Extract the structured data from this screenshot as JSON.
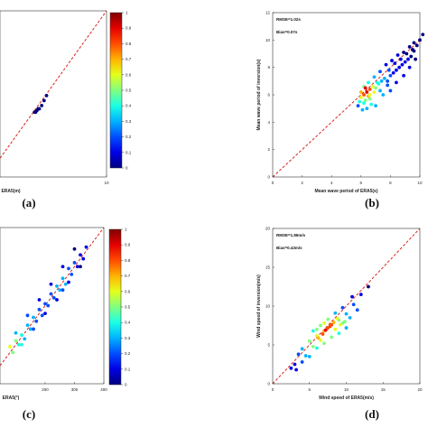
{
  "chart_data": [
    {
      "id": "a",
      "type": "scatter",
      "panel_label": "(a)",
      "xlabel": "ERA5(m)",
      "ylabel": "",
      "xlim": [
        0,
        10
      ],
      "ylim": [
        0,
        10
      ],
      "xticks": [
        "10"
      ],
      "yticks": [],
      "reference_line": "y=x",
      "points": [
        [
          4.0,
          3.9
        ],
        [
          4.2,
          4.0
        ],
        [
          4.4,
          4.1
        ],
        [
          4.6,
          4.3
        ],
        [
          4.8,
          4.6
        ],
        [
          5.0,
          4.9
        ],
        [
          4.3,
          4.1
        ],
        [
          4.1,
          3.9
        ]
      ],
      "colorbar": {
        "min": 0,
        "max": 1,
        "ticks": [
          "0",
          "0.1",
          "0.2",
          "0.3",
          "0.4",
          "0.5",
          "0.6",
          "0.7",
          "0.8",
          "0.9",
          "1"
        ]
      }
    },
    {
      "id": "b",
      "type": "scatter",
      "panel_label": "(b)",
      "xlabel": "Mean wave period of ERA5(s)",
      "ylabel": "Mean wave period of inversion(s)",
      "xlim": [
        0,
        10
      ],
      "ylim": [
        0,
        12
      ],
      "xticks": [
        "0",
        "2",
        "4",
        "6",
        "8",
        "10"
      ],
      "yticks": [
        "0",
        "2",
        "4",
        "6",
        "8",
        "10",
        "12"
      ],
      "annotations": [
        "RMSE=1.02s",
        "Bias=0.07s"
      ],
      "reference_line": "y=x",
      "points": [
        [
          5.8,
          5.2
        ],
        [
          6.0,
          5.8
        ],
        [
          6.2,
          6.0
        ],
        [
          6.3,
          5.6
        ],
        [
          6.4,
          6.2
        ],
        [
          6.5,
          5.9
        ],
        [
          6.6,
          6.4
        ],
        [
          6.8,
          6.6
        ],
        [
          7.0,
          6.5
        ],
        [
          7.2,
          6.8
        ],
        [
          7.4,
          7.0
        ],
        [
          7.6,
          7.2
        ],
        [
          7.8,
          7.0
        ],
        [
          8.0,
          7.4
        ],
        [
          8.2,
          7.6
        ],
        [
          8.4,
          7.8
        ],
        [
          8.6,
          8.0
        ],
        [
          8.8,
          8.2
        ],
        [
          9.0,
          8.4
        ],
        [
          9.2,
          8.6
        ],
        [
          9.4,
          8.8
        ],
        [
          9.6,
          9.2
        ],
        [
          9.8,
          9.6
        ],
        [
          10.0,
          10.0
        ],
        [
          10.2,
          10.4
        ],
        [
          6.1,
          4.9
        ],
        [
          6.4,
          5.0
        ],
        [
          6.7,
          5.3
        ],
        [
          7.0,
          5.2
        ],
        [
          7.5,
          6.0
        ],
        [
          8.0,
          6.3
        ],
        [
          8.4,
          6.9
        ],
        [
          8.9,
          7.4
        ],
        [
          9.3,
          8.0
        ],
        [
          9.7,
          8.6
        ],
        [
          6.2,
          6.6
        ],
        [
          6.5,
          6.9
        ],
        [
          6.9,
          7.3
        ],
        [
          7.3,
          7.7
        ],
        [
          7.7,
          8.2
        ],
        [
          8.1,
          8.5
        ],
        [
          8.5,
          8.9
        ],
        [
          8.9,
          9.1
        ],
        [
          9.3,
          9.5
        ],
        [
          9.6,
          9.8
        ],
        [
          6.0,
          6.2
        ],
        [
          6.3,
          6.5
        ],
        [
          6.6,
          6.0
        ],
        [
          6.9,
          6.2
        ],
        [
          7.1,
          6.9
        ],
        [
          7.9,
          7.8
        ],
        [
          8.3,
          8.3
        ],
        [
          8.7,
          8.6
        ],
        [
          9.1,
          9.0
        ],
        [
          9.5,
          9.3
        ],
        [
          5.9,
          5.5
        ],
        [
          6.2,
          5.4
        ],
        [
          6.6,
          5.7
        ],
        [
          7.3,
          6.3
        ],
        [
          7.8,
          6.7
        ]
      ],
      "point_density": [
        0.2,
        0.6,
        0.8,
        0.5,
        0.9,
        0.7,
        0.8,
        0.6,
        0.5,
        0.4,
        0.3,
        0.3,
        0.2,
        0.2,
        0.1,
        0.1,
        0.1,
        0.1,
        0.1,
        0.1,
        0.0,
        0.0,
        0.0,
        0.0,
        0.0,
        0.3,
        0.3,
        0.4,
        0.3,
        0.3,
        0.2,
        0.1,
        0.1,
        0.1,
        0.0,
        0.5,
        0.4,
        0.3,
        0.2,
        0.1,
        0.1,
        0.1,
        0.0,
        0.0,
        0.0,
        0.7,
        0.9,
        0.6,
        0.6,
        0.4,
        0.2,
        0.1,
        0.1,
        0.0,
        0.0,
        0.4,
        0.4,
        0.5,
        0.3,
        0.2
      ]
    },
    {
      "id": "c",
      "type": "scatter",
      "panel_label": "(c)",
      "xlabel": "ERA5(°)",
      "ylabel": "",
      "xlim": [
        0,
        400
      ],
      "ylim": [
        0,
        400
      ],
      "xticks": [
        "200",
        "300",
        "400"
      ],
      "yticks": [],
      "reference_line": "y=x",
      "points": [
        [
          80,
          95
        ],
        [
          100,
          110
        ],
        [
          120,
          125
        ],
        [
          140,
          150
        ],
        [
          160,
          170
        ],
        [
          180,
          190
        ],
        [
          200,
          205
        ],
        [
          220,
          230
        ],
        [
          240,
          250
        ],
        [
          260,
          270
        ],
        [
          280,
          295
        ],
        [
          300,
          310
        ],
        [
          320,
          330
        ],
        [
          340,
          350
        ],
        [
          90,
          80
        ],
        [
          110,
          100
        ],
        [
          130,
          115
        ],
        [
          150,
          140
        ],
        [
          170,
          160
        ],
        [
          190,
          175
        ],
        [
          210,
          200
        ],
        [
          230,
          220
        ],
        [
          250,
          240
        ],
        [
          270,
          255
        ],
        [
          290,
          280
        ],
        [
          310,
          300
        ],
        [
          330,
          320
        ],
        [
          100,
          130
        ],
        [
          140,
          175
        ],
        [
          180,
          215
        ],
        [
          220,
          255
        ],
        [
          260,
          300
        ],
        [
          300,
          345
        ],
        [
          200,
          180
        ],
        [
          240,
          215
        ],
        [
          280,
          260
        ],
        [
          320,
          300
        ],
        [
          120,
          100
        ],
        [
          160,
          140
        ],
        [
          260,
          240
        ]
      ],
      "point_density": [
        0.6,
        0.5,
        0.4,
        0.3,
        0.3,
        0.2,
        0.2,
        0.2,
        0.3,
        0.3,
        0.2,
        0.2,
        0.1,
        0.1,
        0.5,
        0.4,
        0.3,
        0.3,
        0.2,
        0.2,
        0.2,
        0.2,
        0.3,
        0.3,
        0.2,
        0.1,
        0.1,
        0.3,
        0.2,
        0.1,
        0.1,
        0.1,
        0.0,
        0.1,
        0.1,
        0.1,
        0.0,
        0.4,
        0.2,
        0.2
      ],
      "colorbar": {
        "min": 0,
        "max": 1,
        "ticks": [
          "0",
          "0.1",
          "0.2",
          "0.3",
          "0.4",
          "0.5",
          "0.6",
          "0.7",
          "0.8",
          "0.9",
          "1"
        ]
      }
    },
    {
      "id": "d",
      "type": "scatter",
      "panel_label": "(d)",
      "xlabel": "Wind speed of ERA5(m/s)",
      "ylabel": "Wind speed of inversion(m/s)",
      "xlim": [
        0,
        20
      ],
      "ylim": [
        0,
        20
      ],
      "xticks": [
        "0",
        "5",
        "10",
        "15",
        "20"
      ],
      "yticks": [
        "0",
        "5",
        "10",
        "15",
        "20"
      ],
      "annotations": [
        "RMSE=1.86m/s",
        "Bias=0.43m/s"
      ],
      "reference_line": "y=x",
      "points": [
        [
          3.0,
          2.5
        ],
        [
          3.5,
          3.8
        ],
        [
          4.0,
          4.5
        ],
        [
          4.5,
          3.6
        ],
        [
          5.0,
          5.5
        ],
        [
          5.5,
          4.8
        ],
        [
          6.0,
          6.2
        ],
        [
          6.5,
          5.6
        ],
        [
          7.0,
          6.8
        ],
        [
          7.5,
          7.2
        ],
        [
          8.0,
          7.6
        ],
        [
          8.5,
          7.0
        ],
        [
          9.0,
          8.2
        ],
        [
          9.5,
          7.8
        ],
        [
          10.0,
          9.0
        ],
        [
          10.5,
          8.5
        ],
        [
          11.0,
          10.2
        ],
        [
          12.0,
          11.5
        ],
        [
          13.0,
          12.5
        ],
        [
          4.0,
          2.8
        ],
        [
          5.0,
          3.5
        ],
        [
          6.0,
          4.6
        ],
        [
          7.0,
          5.2
        ],
        [
          8.0,
          6.0
        ],
        [
          9.0,
          6.5
        ],
        [
          10.0,
          7.2
        ],
        [
          5.5,
          6.8
        ],
        [
          6.5,
          7.5
        ],
        [
          7.5,
          8.3
        ],
        [
          8.5,
          9.1
        ],
        [
          9.5,
          9.8
        ],
        [
          6.2,
          5.9
        ],
        [
          6.8,
          6.4
        ],
        [
          7.2,
          6.9
        ],
        [
          7.8,
          7.4
        ],
        [
          8.3,
          7.9
        ],
        [
          8.8,
          8.4
        ],
        [
          9.2,
          7.6
        ],
        [
          9.8,
          8.0
        ],
        [
          6.0,
          7.0
        ],
        [
          7.0,
          7.8
        ],
        [
          3.2,
          1.8
        ],
        [
          2.5,
          2.0
        ],
        [
          11.5,
          9.5
        ],
        [
          10.8,
          11.2
        ]
      ],
      "point_density": [
        0.1,
        0.2,
        0.3,
        0.3,
        0.5,
        0.5,
        0.6,
        0.6,
        0.7,
        0.8,
        0.8,
        0.6,
        0.5,
        0.5,
        0.3,
        0.3,
        0.2,
        0.1,
        0.0,
        0.2,
        0.3,
        0.4,
        0.5,
        0.5,
        0.4,
        0.3,
        0.4,
        0.5,
        0.5,
        0.3,
        0.2,
        0.7,
        0.8,
        0.9,
        0.8,
        0.7,
        0.6,
        0.6,
        0.5,
        0.5,
        0.6,
        0.1,
        0.1,
        0.2,
        0.1
      ]
    }
  ]
}
